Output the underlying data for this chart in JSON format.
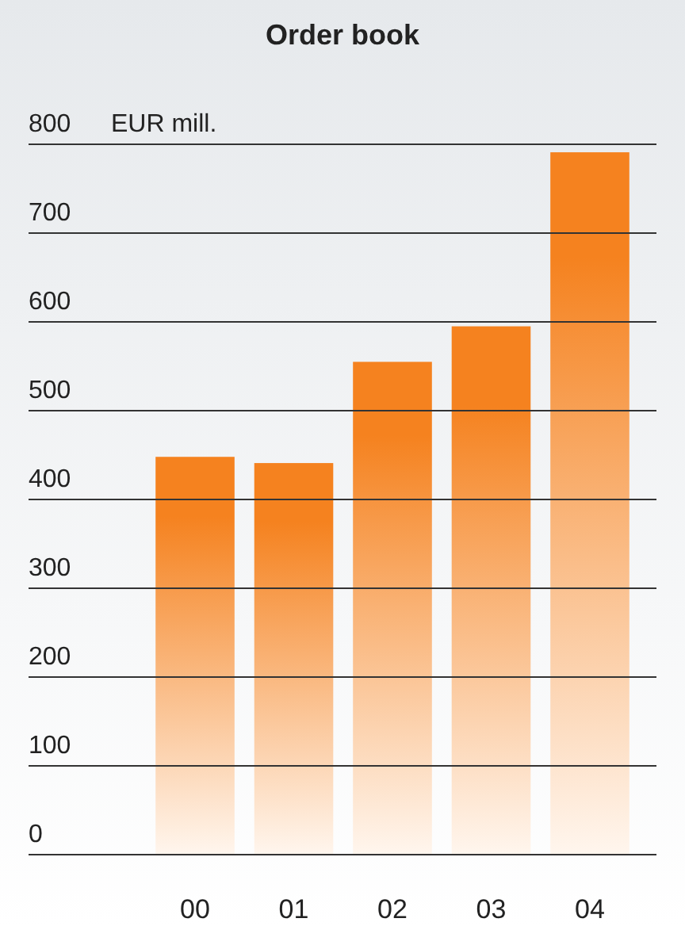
{
  "chart_data": {
    "type": "bar",
    "title": "Order book",
    "ylabel": "EUR mill.",
    "categories": [
      "00",
      "01",
      "02",
      "03",
      "04"
    ],
    "values": [
      448,
      441,
      555,
      595,
      791
    ],
    "color": "#f5821f",
    "ylim": [
      0,
      800
    ],
    "yticks": [
      0,
      100,
      200,
      300,
      400,
      500,
      600,
      700,
      800
    ],
    "grid": "y"
  }
}
